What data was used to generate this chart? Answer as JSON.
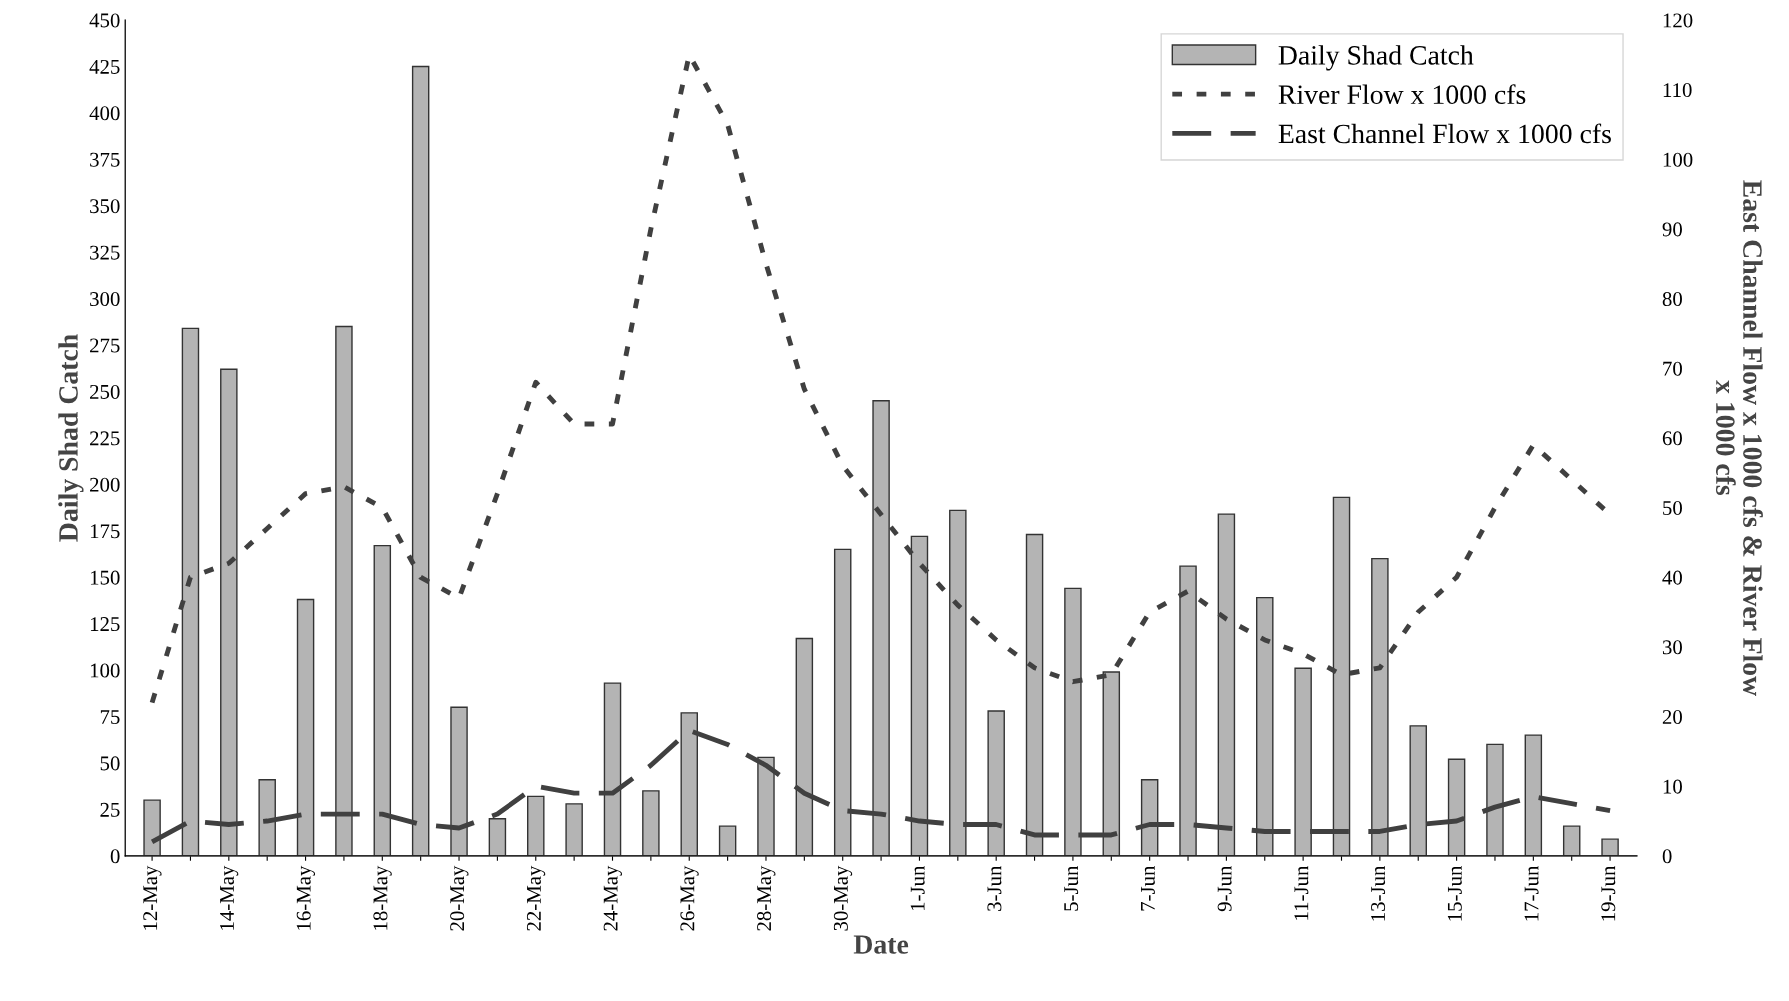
{
  "chart_data": {
    "type": "bar",
    "xlabel": "Date",
    "ylabel": "Daily Shad Catch",
    "y2label": "East Channel Flow x 1000 cfs & River Flow\nx 1000 cfs",
    "categories": [
      "12-May",
      null,
      "14-May",
      null,
      "16-May",
      null,
      "18-May",
      null,
      "20-May",
      null,
      "22-May",
      null,
      "24-May",
      null,
      "26-May",
      null,
      "28-May",
      null,
      "30-May",
      null,
      "1-Jun",
      null,
      "3-Jun",
      null,
      "5-Jun",
      null,
      "7-Jun",
      null,
      "9-Jun",
      null,
      "11-Jun",
      null,
      "13-Jun",
      null,
      "15-Jun",
      null,
      "17-Jun",
      null,
      "19-Jun"
    ],
    "series": [
      {
        "name": "Daily Shad Catch",
        "color": "#b4b4b4",
        "values": [
          30,
          284,
          262,
          41,
          138,
          285,
          167,
          425,
          80,
          20,
          32,
          28,
          93,
          35,
          77,
          16,
          53,
          117,
          165,
          245,
          172,
          186,
          78,
          173,
          144,
          99,
          41,
          156,
          184,
          139,
          101,
          193,
          160,
          70,
          52,
          60,
          65,
          16,
          9
        ]
      },
      {
        "name": "River Flow x 1000 cfs",
        "type": "line",
        "axis": "y2",
        "line_style": "dotted",
        "color": "#404040",
        "values": [
          22,
          40,
          42,
          47,
          52,
          53,
          50,
          40,
          37,
          52,
          68,
          62,
          62,
          90,
          115,
          105,
          85,
          67,
          56,
          49,
          42,
          36,
          31,
          27,
          25,
          26,
          35,
          38,
          34,
          31,
          29,
          26,
          27,
          35,
          40,
          50,
          59,
          54,
          49
        ]
      },
      {
        "name": "East Channel Flow x 1000 cfs",
        "type": "line",
        "axis": "y2",
        "line_style": "dashed",
        "color": "#404040",
        "values": [
          2,
          5,
          4.5,
          5,
          6,
          6,
          6,
          4.5,
          4,
          6,
          10,
          9,
          9,
          13,
          18,
          16,
          13,
          9,
          6.5,
          6,
          5,
          4.5,
          4.5,
          3,
          3,
          3,
          4.5,
          4.5,
          4,
          3.5,
          3.5,
          3.5,
          3.5,
          4.5,
          5,
          7,
          8.5,
          7.5,
          6.5
        ]
      }
    ],
    "ylim": [
      0,
      450
    ],
    "yticks": [
      0,
      25,
      50,
      75,
      100,
      125,
      150,
      175,
      200,
      225,
      250,
      275,
      300,
      325,
      350,
      375,
      400,
      425,
      450
    ],
    "y2lim": [
      0,
      120
    ],
    "y2ticks": [
      0,
      10,
      20,
      30,
      40,
      50,
      60,
      70,
      80,
      90,
      100,
      110,
      120
    ],
    "grid": false,
    "legend": "top right"
  }
}
